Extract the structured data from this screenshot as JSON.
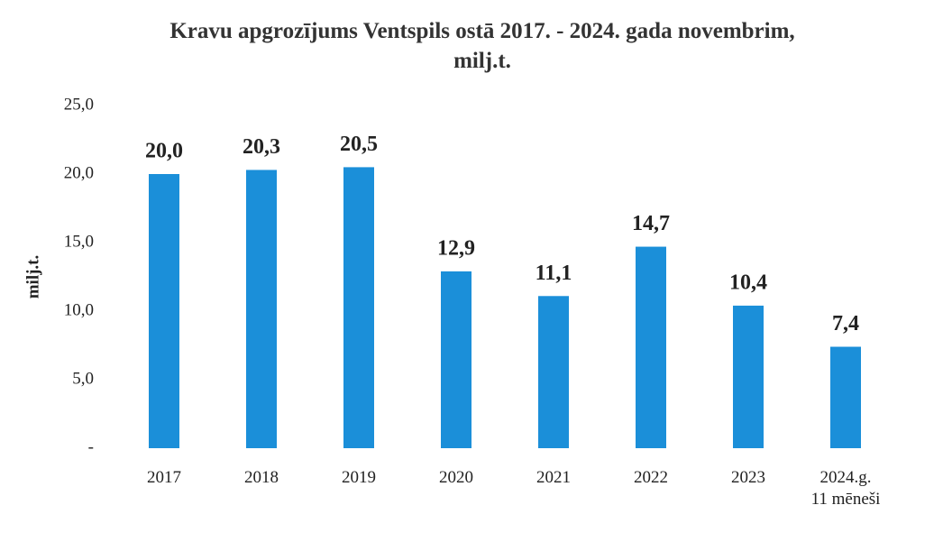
{
  "chart_data": {
    "type": "bar",
    "title": "Kravu apgrozījums Ventspils ostā 2017. - 2024. gada novembrim,\nmilj.t.",
    "y_label": "milj.t.",
    "categories": [
      "2017",
      "2018",
      "2019",
      "2020",
      "2021",
      "2022",
      "2023",
      "2024.g.\n11 mēneši"
    ],
    "values": [
      20.0,
      20.3,
      20.5,
      12.9,
      11.1,
      14.7,
      10.4,
      7.4
    ],
    "value_labels": [
      "20,0",
      "20,3",
      "20,5",
      "12,9",
      "11,1",
      "14,7",
      "10,4",
      "7,4"
    ],
    "color": "#1b8fd9",
    "ylim": [
      0,
      25
    ],
    "yticks": [
      {
        "value": 0,
        "label": "-"
      },
      {
        "value": 5,
        "label": "5,0"
      },
      {
        "value": 10,
        "label": "10,0"
      },
      {
        "value": 15,
        "label": "15,0"
      },
      {
        "value": 20,
        "label": "20,0"
      },
      {
        "value": 25,
        "label": "25,0"
      }
    ],
    "grid": false
  }
}
